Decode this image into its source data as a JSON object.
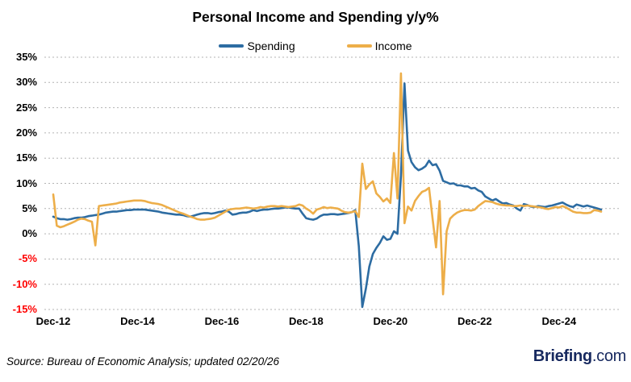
{
  "source_note": "Source:  Bureau of Economic Analysis; updated 02/20/26",
  "logo": {
    "brand": "Briefing",
    "suffix": ".com",
    "color": "#17295f"
  },
  "colors": {
    "background": "#ffffff",
    "spending_line": "#2d6ca2",
    "income_line": "#edae49",
    "gridline": "#b3b3b3",
    "axis_label": "#000000",
    "negative_axis_label": "#ff0000"
  },
  "chart_data": {
    "type": "line",
    "title": "Personal Income and Spending y/y%",
    "xlabel": "",
    "ylabel": "",
    "ylim": [
      -15,
      35
    ],
    "grid": "horizontal-dashed",
    "legend_position": "top-center",
    "x_start": "Dec-2012",
    "x_end": "Dec-2025",
    "x_freq": "monthly",
    "x_tick_labels": [
      {
        "label": "Dec-12",
        "month": 0
      },
      {
        "label": "Dec-14",
        "month": 24
      },
      {
        "label": "Dec-16",
        "month": 48
      },
      {
        "label": "Dec-18",
        "month": 72
      },
      {
        "label": "Dec-20",
        "month": 96
      },
      {
        "label": "Dec-22",
        "month": 120
      },
      {
        "label": "Dec-24",
        "month": 144
      }
    ],
    "y_ticks": [
      {
        "label": "35%",
        "value": 35
      },
      {
        "label": "30%",
        "value": 30
      },
      {
        "label": "25%",
        "value": 25
      },
      {
        "label": "20%",
        "value": 20
      },
      {
        "label": "15%",
        "value": 15
      },
      {
        "label": "10%",
        "value": 10
      },
      {
        "label": "5%",
        "value": 5
      },
      {
        "label": "0%",
        "value": 0
      },
      {
        "label": "-5%",
        "value": -5
      },
      {
        "label": "-10%",
        "value": -10
      },
      {
        "label": "-15%",
        "value": -15
      }
    ],
    "series": [
      {
        "name": "Spending",
        "color": "#2d6ca2",
        "values": [
          3.4,
          3.1,
          2.9,
          2.9,
          2.8,
          2.9,
          3.1,
          3.2,
          3.2,
          3.3,
          3.5,
          3.6,
          3.7,
          3.8,
          4.0,
          4.2,
          4.3,
          4.4,
          4.4,
          4.5,
          4.6,
          4.7,
          4.7,
          4.8,
          4.8,
          4.8,
          4.8,
          4.7,
          4.6,
          4.5,
          4.4,
          4.2,
          4.1,
          4.0,
          3.9,
          3.8,
          3.8,
          3.7,
          3.5,
          3.4,
          3.6,
          3.8,
          4.0,
          4.1,
          4.1,
          4.0,
          4.1,
          4.3,
          4.4,
          4.6,
          4.4,
          3.8,
          3.9,
          4.1,
          4.2,
          4.2,
          4.4,
          4.7,
          4.5,
          4.7,
          4.8,
          4.8,
          4.9,
          5.0,
          5.0,
          5.1,
          5.2,
          5.2,
          5.1,
          5.0,
          5.0,
          4.0,
          3.1,
          2.9,
          2.8,
          3.0,
          3.5,
          3.8,
          3.8,
          3.9,
          3.9,
          3.8,
          3.9,
          4.0,
          4.1,
          4.3,
          4.7,
          -2.5,
          -14.5,
          -10.9,
          -6.5,
          -4.0,
          -2.8,
          -1.8,
          -0.5,
          -1.2,
          -1.0,
          0.5,
          0.0,
          11.5,
          29.8,
          16.5,
          14.2,
          13.2,
          12.6,
          12.9,
          13.4,
          14.5,
          13.6,
          13.8,
          12.5,
          10.5,
          10.2,
          9.9,
          10.0,
          9.6,
          9.6,
          9.4,
          9.4,
          9.0,
          9.1,
          8.6,
          8.3,
          7.4,
          7.0,
          6.6,
          6.9,
          6.4,
          6.0,
          6.1,
          5.8,
          5.6,
          5.0,
          4.6,
          5.9,
          5.7,
          5.4,
          5.3,
          5.5,
          5.4,
          5.3,
          5.5,
          5.6,
          5.8,
          6.0,
          6.2,
          5.8,
          5.5,
          5.3,
          5.8,
          5.6,
          5.4,
          5.6,
          5.4,
          5.2,
          5.0,
          4.8
        ]
      },
      {
        "name": "Income",
        "color": "#edae49",
        "values": [
          7.8,
          1.6,
          1.3,
          1.5,
          1.8,
          2.1,
          2.4,
          2.8,
          3.0,
          2.9,
          2.6,
          2.4,
          -2.3,
          5.5,
          5.6,
          5.7,
          5.8,
          5.9,
          6.0,
          6.2,
          6.3,
          6.4,
          6.5,
          6.6,
          6.6,
          6.6,
          6.5,
          6.3,
          6.1,
          6.0,
          5.9,
          5.7,
          5.4,
          5.1,
          4.8,
          4.5,
          4.2,
          4.0,
          3.7,
          3.4,
          3.2,
          2.9,
          2.8,
          2.8,
          2.9,
          3.0,
          3.2,
          3.6,
          4.0,
          4.4,
          4.8,
          4.9,
          5.0,
          5.0,
          5.1,
          5.2,
          5.1,
          5.0,
          5.1,
          5.3,
          5.2,
          5.4,
          5.5,
          5.5,
          5.4,
          5.5,
          5.4,
          5.3,
          5.4,
          5.5,
          5.8,
          5.6,
          5.0,
          4.6,
          4.0,
          4.8,
          5.0,
          5.3,
          5.1,
          5.2,
          5.1,
          5.0,
          4.6,
          4.3,
          4.2,
          4.3,
          4.5,
          3.3,
          13.9,
          8.9,
          9.8,
          10.4,
          8.0,
          7.3,
          6.4,
          7.0,
          6.1,
          16.0,
          7.0,
          31.8,
          2.1,
          5.4,
          4.6,
          6.5,
          7.5,
          8.3,
          8.6,
          9.1,
          3.0,
          -2.7,
          6.5,
          -12.0,
          0.5,
          3.0,
          3.7,
          4.2,
          4.5,
          4.7,
          4.7,
          4.6,
          4.8,
          5.5,
          6.0,
          6.5,
          6.4,
          6.3,
          6.0,
          5.8,
          5.7,
          5.6,
          5.6,
          5.5,
          5.5,
          5.6,
          5.5,
          5.6,
          5.5,
          5.4,
          5.3,
          5.2,
          5.0,
          4.9,
          5.1,
          5.3,
          5.2,
          5.5,
          5.2,
          4.8,
          4.4,
          4.2,
          4.2,
          4.1,
          4.1,
          4.2,
          4.7,
          4.6,
          4.4
        ]
      }
    ]
  }
}
